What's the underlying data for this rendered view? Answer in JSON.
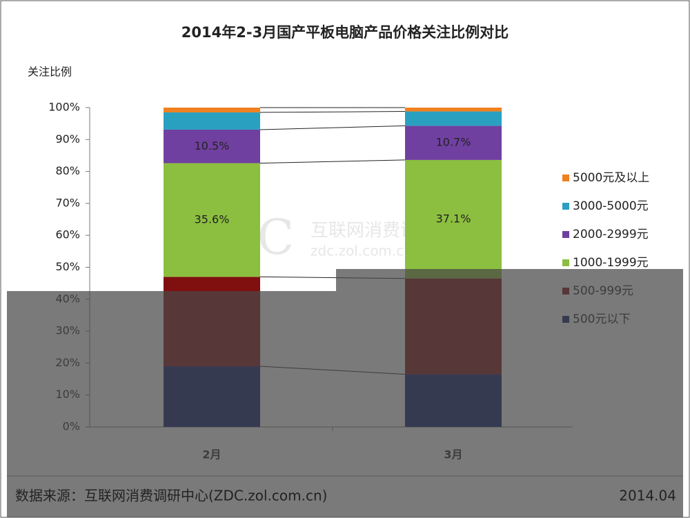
{
  "chart_data": {
    "type": "stacked_bar_100",
    "title": "2014年2-3月国产平板电脑产品价格关注比例对比",
    "y_axis_label": "关注比例",
    "categories": [
      "2月",
      "3月"
    ],
    "series": [
      {
        "name": "500元以下",
        "color": "#0b1a6e",
        "values": [
          19,
          16.5
        ],
        "value_labels": [
          null,
          null
        ]
      },
      {
        "name": "500-999元",
        "color": "#800f0f",
        "values": [
          28,
          30
        ],
        "value_labels": [
          null,
          null
        ]
      },
      {
        "name": "1000-1999元",
        "color": "#8cbf3f",
        "values": [
          35.6,
          37.1
        ],
        "value_labels": [
          "35.6%",
          "37.1%"
        ]
      },
      {
        "name": "2000-2999元",
        "color": "#7040a0",
        "values": [
          10.5,
          10.7
        ],
        "value_labels": [
          "10.5%",
          "10.7%"
        ]
      },
      {
        "name": "3000-5000元",
        "color": "#2aa0c0",
        "values": [
          5.4,
          4.5
        ],
        "value_labels": [
          null,
          null
        ]
      },
      {
        "name": "5000元及以上",
        "color": "#f08020",
        "values": [
          1.5,
          1.2
        ],
        "value_labels": [
          null,
          null
        ]
      }
    ],
    "ylim": [
      0,
      100
    ],
    "yticks": [
      {
        "value": 0,
        "label": "0%"
      },
      {
        "value": 10,
        "label": "10%"
      },
      {
        "value": 20,
        "label": "20%"
      },
      {
        "value": 30,
        "label": "30%"
      },
      {
        "value": 40,
        "label": "40%"
      },
      {
        "value": 50,
        "label": "50%"
      },
      {
        "value": 60,
        "label": "60%"
      },
      {
        "value": 70,
        "label": "70%"
      },
      {
        "value": 80,
        "label": "80%"
      },
      {
        "value": 90,
        "label": "90%"
      },
      {
        "value": 100,
        "label": "100%"
      }
    ],
    "watermark": {
      "logo": "ZDC",
      "name": "互联网消费调研中心",
      "url": "zdc.zol.com.cn"
    },
    "source": "数据来源：互联网消费调研中心(ZDC.zol.com.cn)",
    "date": "2014.04",
    "legend": "right"
  }
}
